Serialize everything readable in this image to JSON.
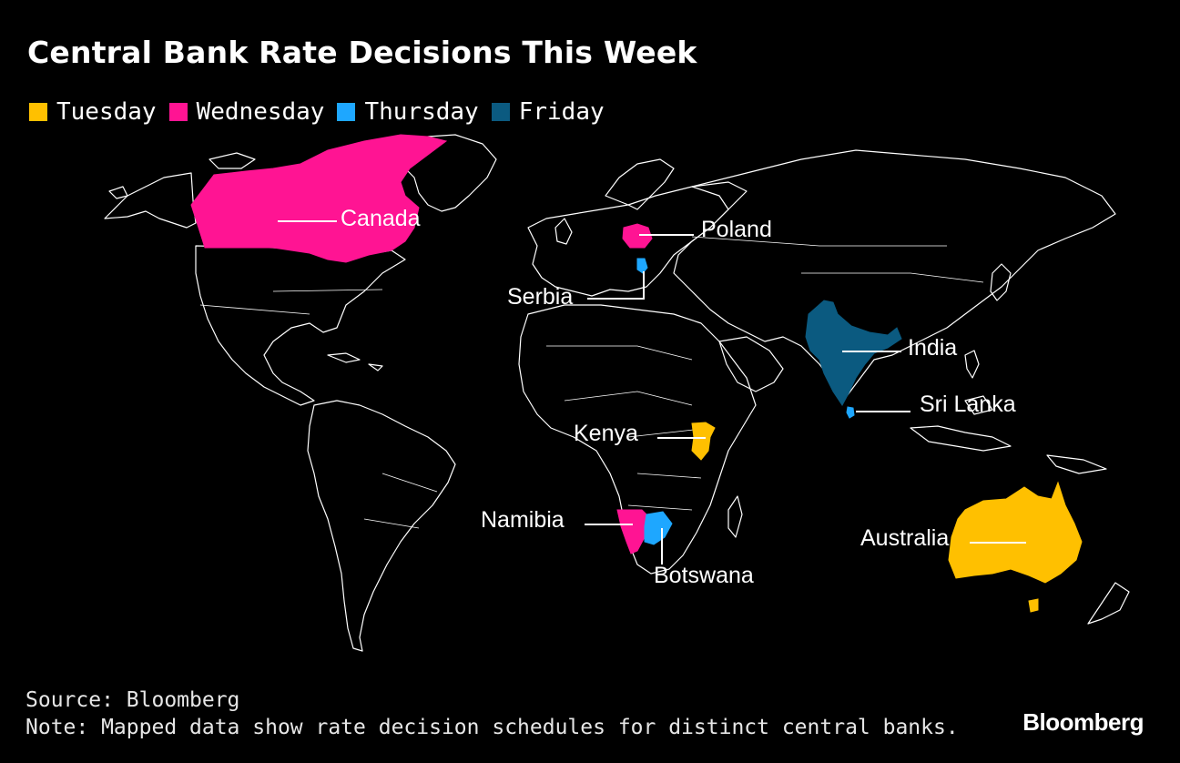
{
  "title": "Central Bank Rate Decisions This Week",
  "legend": [
    {
      "label": "Tuesday",
      "color": "#FFC000"
    },
    {
      "label": "Wednesday",
      "color": "#FF1493"
    },
    {
      "label": "Thursday",
      "color": "#1EA7FF"
    },
    {
      "label": "Friday",
      "color": "#0B5A80"
    }
  ],
  "countries": {
    "canada": {
      "label": "Canada",
      "day": "Wednesday"
    },
    "poland": {
      "label": "Poland",
      "day": "Wednesday"
    },
    "serbia": {
      "label": "Serbia",
      "day": "Thursday"
    },
    "india": {
      "label": "India",
      "day": "Friday"
    },
    "sri_lanka": {
      "label": "Sri Lanka",
      "day": "Thursday"
    },
    "kenya": {
      "label": "Kenya",
      "day": "Tuesday"
    },
    "namibia": {
      "label": "Namibia",
      "day": "Wednesday"
    },
    "botswana": {
      "label": "Botswana",
      "day": "Thursday"
    },
    "australia": {
      "label": "Australia",
      "day": "Tuesday"
    }
  },
  "footer": {
    "source": "Source: Bloomberg",
    "note": "Note: Mapped data show rate decision schedules for distinct central banks."
  },
  "brand": "Bloomberg"
}
